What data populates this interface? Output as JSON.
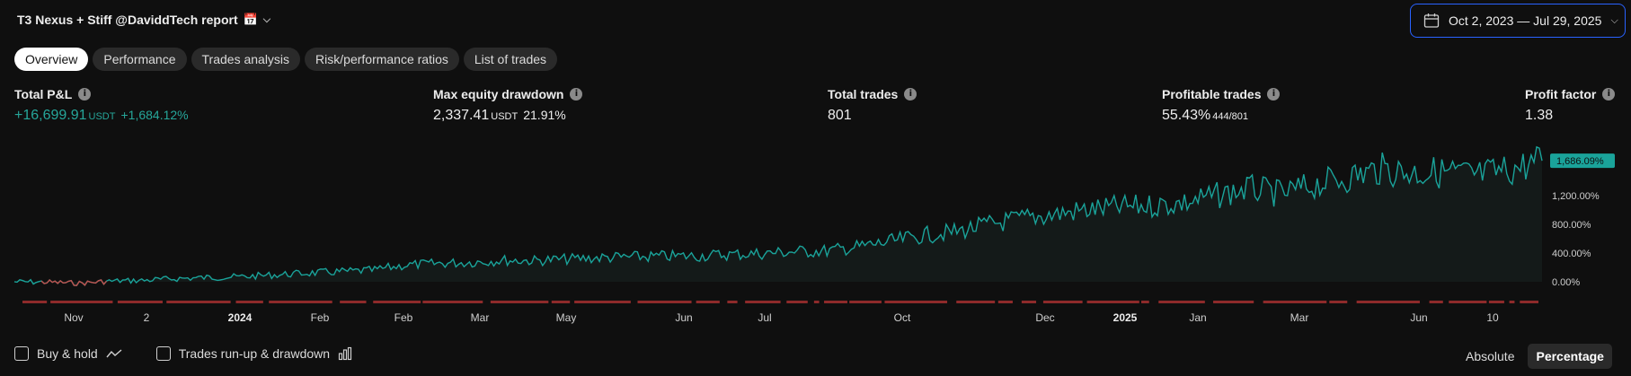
{
  "header": {
    "title": "T3 Nexus + Stiff @DaviddTech  report",
    "date_range": "Oct 2, 2023 — Jul 29, 2025"
  },
  "tabs": [
    {
      "label": "Overview",
      "active": true
    },
    {
      "label": "Performance",
      "active": false
    },
    {
      "label": "Trades analysis",
      "active": false
    },
    {
      "label": "Risk/performance ratios",
      "active": false
    },
    {
      "label": "List of trades",
      "active": false
    }
  ],
  "metrics": {
    "total_pnl": {
      "label": "Total P&L",
      "value": "+16,699.91",
      "unit": "USDT",
      "pct": "+1,684.12%"
    },
    "max_drawdown": {
      "label": "Max equity drawdown",
      "value": "2,337.41",
      "unit": "USDT",
      "pct": "21.91%"
    },
    "total_trades": {
      "label": "Total trades",
      "value": "801"
    },
    "profitable_trades": {
      "label": "Profitable trades",
      "value": "55.43%",
      "ratio": "444/801"
    },
    "profit_factor": {
      "label": "Profit factor",
      "value": "1.38"
    }
  },
  "chart_data": {
    "type": "area",
    "current_label": "1,686.09%",
    "y_ticks": [
      "0.00%",
      "400.00%",
      "800.00%",
      "1,200.00%"
    ],
    "x_ticks": [
      "Nov",
      "2",
      "2024",
      "Feb",
      "Feb",
      "Mar",
      "May",
      "Jun",
      "Jul",
      "Oct",
      "Dec",
      "2025",
      "Jan",
      "Mar",
      "Jun",
      "10"
    ],
    "x_ticks_bold": [
      "2024",
      "2025"
    ],
    "ylim": [
      0,
      1800
    ],
    "equity_pct": [
      0,
      -5,
      -20,
      10,
      20,
      45,
      60,
      70,
      95,
      120,
      140,
      160,
      230,
      255,
      270,
      300,
      295,
      315,
      335,
      345,
      355,
      360,
      380,
      395,
      420,
      430,
      490,
      560,
      650,
      700,
      800,
      880,
      940,
      1000,
      1040,
      1060,
      1100,
      1200,
      1300,
      1220,
      1350,
      1450,
      1570,
      1520,
      1530,
      1480,
      1560,
      1686.09
    ],
    "line_color": "#1aa39a",
    "drawdown_color": "#8e2a2a"
  },
  "footer": {
    "buy_hold": "Buy & hold",
    "runup": "Trades run-up & drawdown",
    "absolute": "Absolute",
    "percentage": "Percentage"
  }
}
